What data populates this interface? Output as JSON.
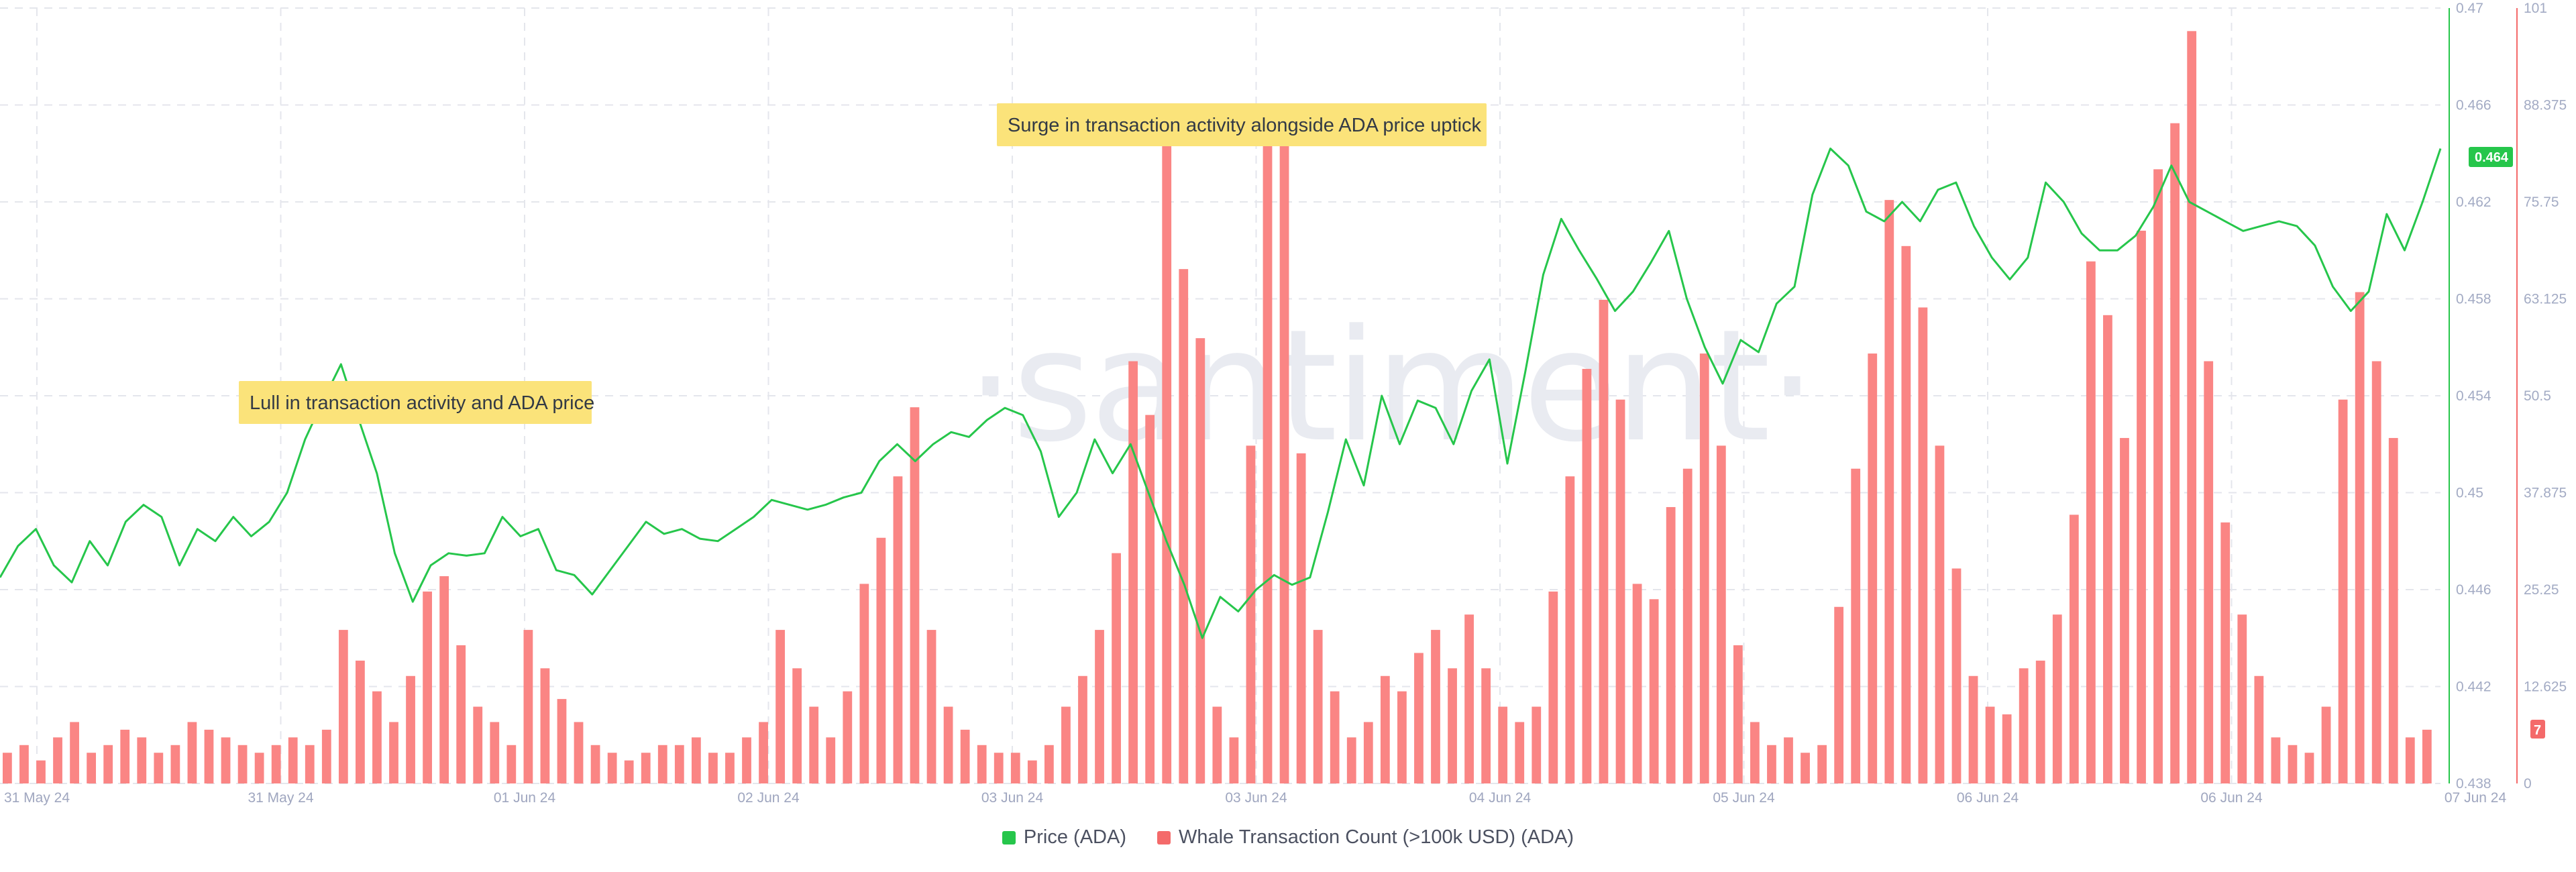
{
  "colors": {
    "price": "#26c64b",
    "whale": "#f46a6a",
    "whale_fill": "#fa8584",
    "price_badge": "#26c64b",
    "whale_badge": "#f46a6a",
    "annotation_bg": "#fbe37a"
  },
  "watermark": "·santiment·",
  "annotations": [
    {
      "text": "Lull in transaction activity and ADA price"
    },
    {
      "text": "Surge in transaction activity alongside ADA price uptick"
    }
  ],
  "legend": [
    {
      "label": "Price (ADA)",
      "color": "#26c64b"
    },
    {
      "label": "Whale Transaction Count (>100k USD) (ADA)",
      "color": "#f46a6a"
    }
  ],
  "chart_data": {
    "type": "line",
    "title": "",
    "xlabel": "",
    "grid": true,
    "legend_position": "bottom-center",
    "x_tick_labels": [
      "31 May 24",
      "31 May 24",
      "01 Jun 24",
      "02 Jun 24",
      "03 Jun 24",
      "03 Jun 24",
      "04 Jun 24",
      "05 Jun 24",
      "06 Jun 24",
      "06 Jun 24",
      "07 Jun 24"
    ],
    "y_left": {
      "label": "Price (ADA)",
      "ticks": [
        "0.47",
        "0.466",
        "0.462",
        "0.458",
        "0.454",
        "0.45",
        "0.446",
        "0.442",
        "0.438"
      ],
      "range": [
        0.438,
        0.47
      ]
    },
    "y_right": {
      "label": "Whale Transaction Count (>100k USD) (ADA)",
      "ticks": [
        "101",
        "88.375",
        "75.75",
        "63.125",
        "50.5",
        "37.875",
        "25.25",
        "12.625",
        "0"
      ],
      "range": [
        0,
        101
      ]
    },
    "last_values": {
      "price": "0.464",
      "whale": "7"
    },
    "series": [
      {
        "name": "Price (ADA)",
        "axis": "left",
        "type": "line",
        "values": [
          0.4465,
          0.4478,
          0.4485,
          0.447,
          0.4463,
          0.448,
          0.447,
          0.4488,
          0.4495,
          0.449,
          0.447,
          0.4485,
          0.448,
          0.449,
          0.4482,
          0.4488,
          0.45,
          0.4522,
          0.4538,
          0.4553,
          0.453,
          0.4508,
          0.4475,
          0.4455,
          0.447,
          0.4475,
          0.4474,
          0.4475,
          0.449,
          0.4482,
          0.4485,
          0.4468,
          0.4466,
          0.4458,
          0.4468,
          0.4478,
          0.4488,
          0.4483,
          0.4485,
          0.4481,
          0.448,
          0.4485,
          0.449,
          0.4497,
          0.4495,
          0.4493,
          0.4495,
          0.4498,
          0.45,
          0.4513,
          0.452,
          0.4513,
          0.452,
          0.4525,
          0.4523,
          0.453,
          0.4535,
          0.4532,
          0.4517,
          0.449,
          0.45,
          0.4522,
          0.4508,
          0.452,
          0.45,
          0.448,
          0.4462,
          0.444,
          0.4457,
          0.4451,
          0.446,
          0.4466,
          0.4462,
          0.4465,
          0.4492,
          0.4522,
          0.4503,
          0.454,
          0.452,
          0.4538,
          0.4535,
          0.452,
          0.4542,
          0.4555,
          0.4512,
          0.455,
          0.459,
          0.4613,
          0.46,
          0.4588,
          0.4575,
          0.4583,
          0.4595,
          0.4608,
          0.458,
          0.456,
          0.4545,
          0.4563,
          0.4558,
          0.4578,
          0.4585,
          0.4623,
          0.4642,
          0.4635,
          0.4616,
          0.4612,
          0.462,
          0.4612,
          0.4625,
          0.4628,
          0.461,
          0.4597,
          0.4588,
          0.4597,
          0.4628,
          0.462,
          0.4607,
          0.46,
          0.46,
          0.4606,
          0.4618,
          0.4635,
          0.462,
          0.4616,
          0.4612,
          0.4608,
          0.461,
          0.4612,
          0.461,
          0.4602,
          0.4585,
          0.4575,
          0.4583,
          0.4615,
          0.46,
          0.462,
          0.4642
        ]
      },
      {
        "name": "Whale Transaction Count (>100k USD) (ADA)",
        "axis": "right",
        "type": "bar",
        "values": [
          4,
          5,
          3,
          6,
          8,
          4,
          5,
          7,
          6,
          4,
          5,
          8,
          7,
          6,
          5,
          4,
          5,
          6,
          5,
          7,
          20,
          16,
          12,
          8,
          14,
          25,
          27,
          18,
          10,
          8,
          5,
          20,
          15,
          11,
          8,
          5,
          4,
          3,
          4,
          5,
          5,
          6,
          4,
          4,
          6,
          8,
          20,
          15,
          10,
          6,
          12,
          26,
          32,
          40,
          49,
          20,
          10,
          7,
          5,
          4,
          4,
          3,
          5,
          10,
          14,
          20,
          30,
          55,
          48,
          83,
          67,
          58,
          10,
          6,
          44,
          86,
          87,
          43,
          20,
          12,
          6,
          8,
          14,
          12,
          17,
          20,
          15,
          22,
          15,
          10,
          8,
          10,
          25,
          40,
          54,
          63,
          50,
          26,
          24,
          36,
          41,
          56,
          44,
          18,
          8,
          5,
          6,
          4,
          5,
          23,
          41,
          56,
          76,
          70,
          62,
          44,
          28,
          14,
          10,
          9,
          15,
          16,
          22,
          35,
          68,
          61,
          45,
          72,
          80,
          86,
          98,
          55,
          34,
          22,
          14,
          6,
          5,
          4,
          10,
          50,
          64,
          55,
          45,
          6,
          7
        ]
      }
    ]
  }
}
